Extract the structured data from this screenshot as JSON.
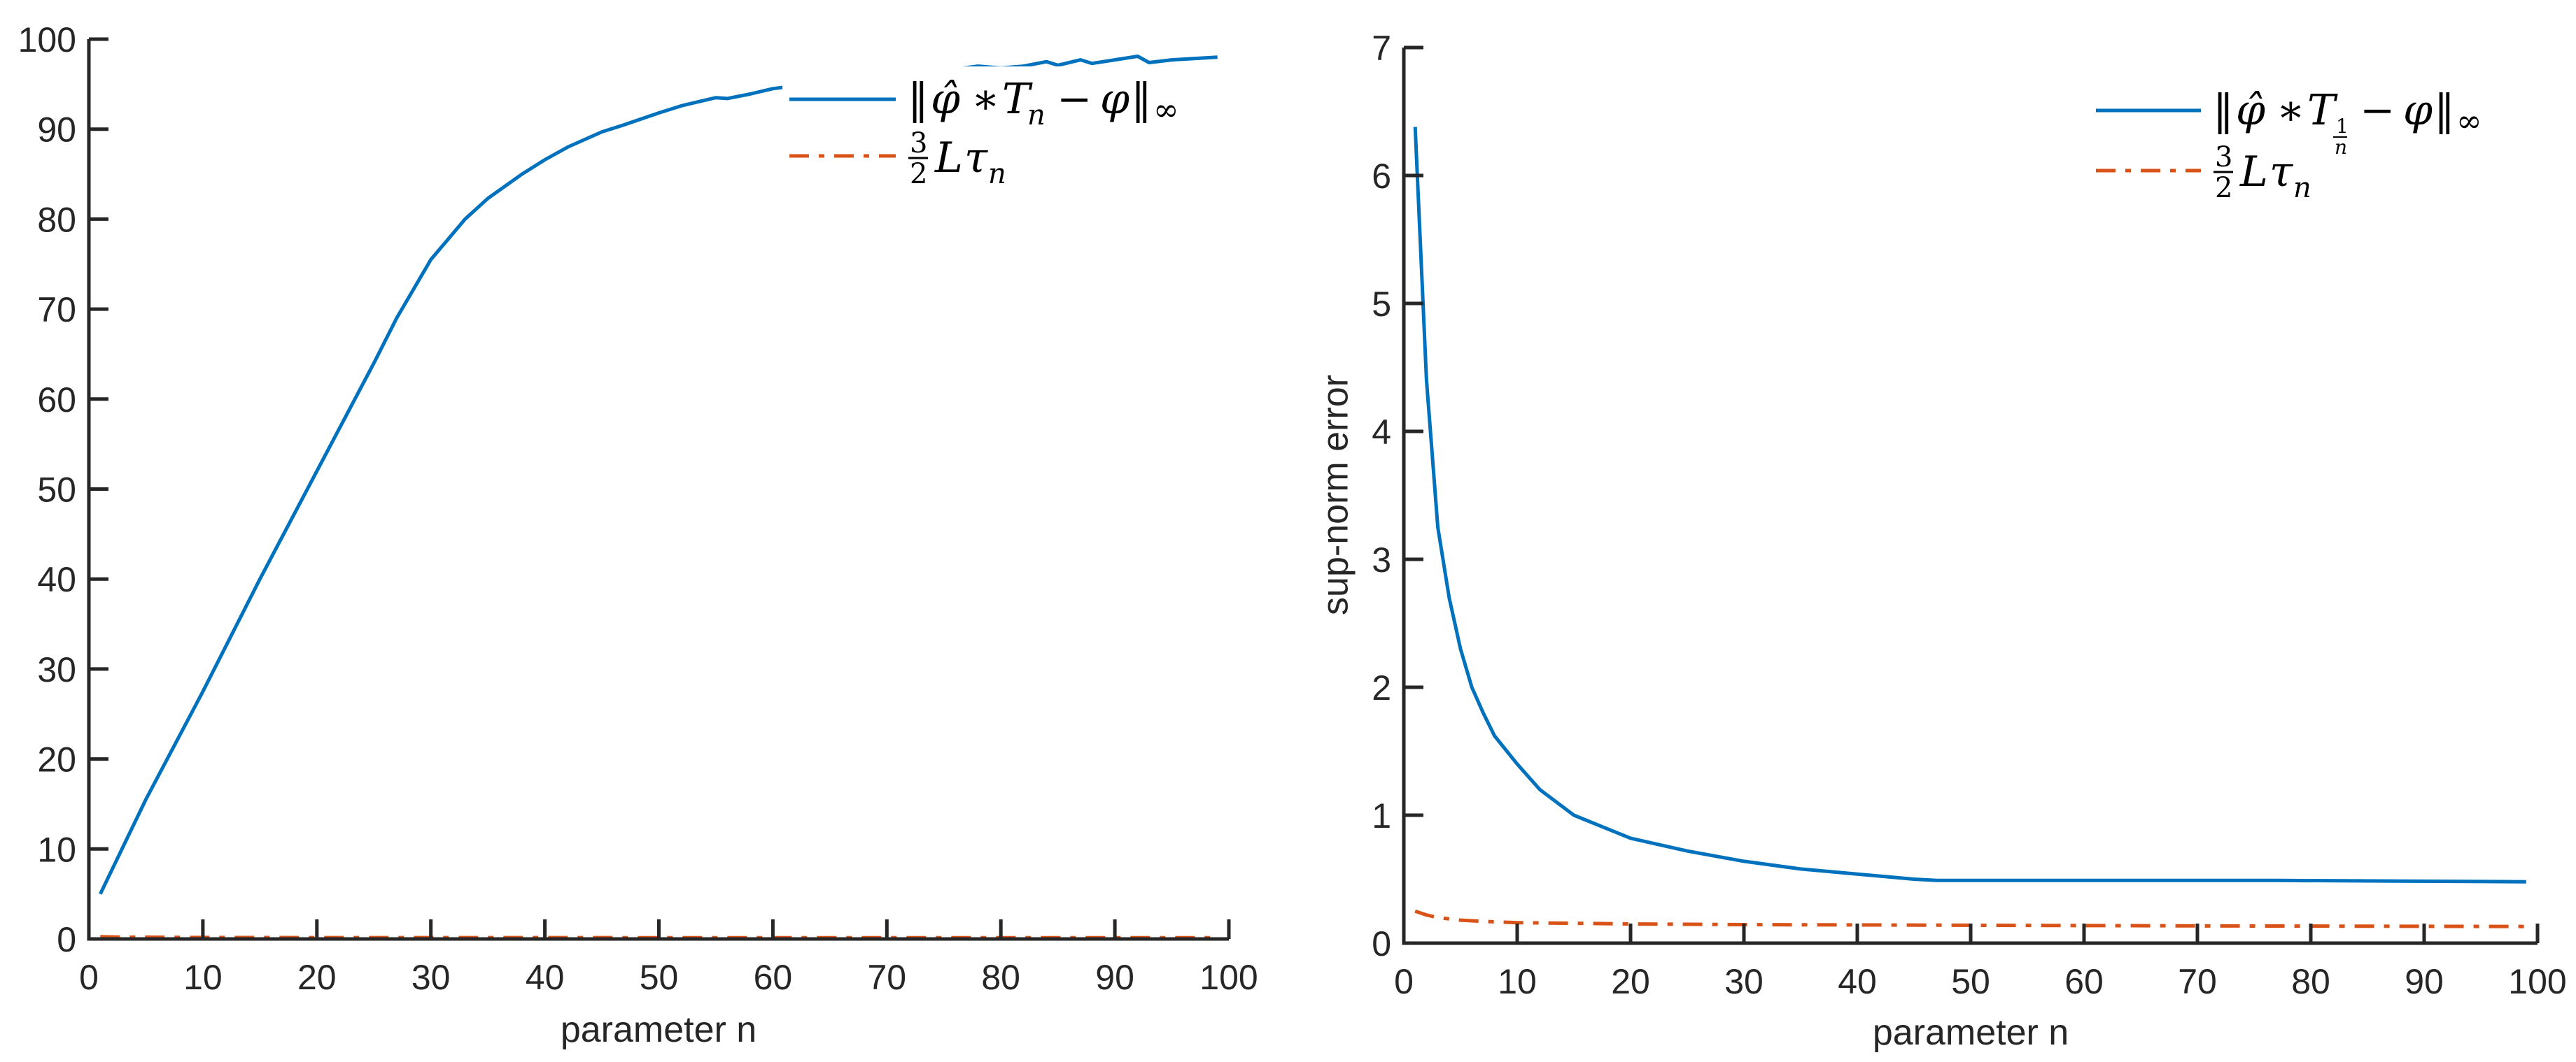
{
  "colors": {
    "series_blue": "#0072BD",
    "series_orange": "#D95319",
    "axis": "#262626"
  },
  "chart_data": [
    {
      "type": "line",
      "title": "",
      "xlabel": "parameter n",
      "ylabel": "",
      "xlim": [
        0,
        100
      ],
      "ylim": [
        0,
        100
      ],
      "xticks": [
        0,
        10,
        20,
        30,
        40,
        50,
        60,
        70,
        80,
        90,
        100
      ],
      "yticks": [
        0,
        10,
        20,
        30,
        40,
        50,
        60,
        70,
        80,
        90,
        100
      ],
      "grid": false,
      "legend_position": "northeast",
      "legend": [
        "||φ̂ * T_n − φ||_∞",
        "(3/2) L τ_n"
      ],
      "series": [
        {
          "name": "||φ̂ * T_n − φ||_∞",
          "style": "solid",
          "color": "#0072BD",
          "x": [
            1,
            5,
            10,
            15,
            20,
            25,
            27,
            30,
            33,
            35,
            38,
            40,
            42,
            45,
            47,
            50,
            52,
            55,
            56,
            58,
            60,
            65,
            70,
            75,
            78,
            80,
            82,
            84,
            85,
            87,
            88,
            90,
            92,
            93,
            95,
            99
          ],
          "values": [
            5,
            15.5,
            27.5,
            40,
            52,
            64,
            69,
            75.5,
            80,
            82.3,
            85,
            86.6,
            88,
            89.7,
            90.5,
            91.8,
            92.6,
            93.5,
            93.4,
            93.9,
            94.5,
            95.3,
            96,
            96.5,
            97,
            96.8,
            97,
            97.5,
            97.1,
            97.7,
            97.3,
            97.7,
            98.1,
            97.4,
            97.7,
            98
          ]
        },
        {
          "name": "(3/2) L τ_n",
          "style": "dash-dot",
          "color": "#D95319",
          "x": [
            1,
            3,
            10,
            20,
            50,
            99
          ],
          "values": [
            0.25,
            0.2,
            0.16,
            0.15,
            0.14,
            0.13
          ]
        }
      ]
    },
    {
      "type": "line",
      "title": "",
      "xlabel": "parameter n",
      "ylabel": "sup-norm error",
      "xlim": [
        0,
        100
      ],
      "ylim": [
        0,
        7
      ],
      "xticks": [
        0,
        10,
        20,
        30,
        40,
        50,
        60,
        70,
        80,
        90,
        100
      ],
      "yticks": [
        0,
        1,
        2,
        3,
        4,
        5,
        6,
        7
      ],
      "grid": false,
      "legend_position": "northeast",
      "legend": [
        "||φ̂ * T_{1/n} − φ||_∞",
        "(3/2) L τ_n"
      ],
      "series": [
        {
          "name": "||φ̂ * T_{1/n} − φ||_∞",
          "style": "solid",
          "color": "#0072BD",
          "x": [
            1,
            2,
            3,
            4,
            5,
            6,
            7,
            8,
            10,
            12,
            15,
            20,
            25,
            30,
            35,
            40,
            45,
            47,
            60,
            77,
            99
          ],
          "values": [
            6.38,
            4.4,
            3.25,
            2.7,
            2.3,
            2.0,
            1.8,
            1.62,
            1.4,
            1.2,
            1.0,
            0.82,
            0.72,
            0.64,
            0.58,
            0.54,
            0.5,
            0.49,
            0.49,
            0.49,
            0.48
          ]
        },
        {
          "name": "(3/2) L τ_n",
          "style": "dash-dot",
          "color": "#D95319",
          "x": [
            1,
            2,
            3,
            5,
            7,
            10,
            15,
            20,
            30,
            50,
            70,
            99
          ],
          "values": [
            0.25,
            0.22,
            0.2,
            0.18,
            0.17,
            0.16,
            0.155,
            0.15,
            0.145,
            0.14,
            0.135,
            0.13
          ]
        }
      ]
    }
  ],
  "left_chart": {
    "xlabel": "parameter n",
    "xtick_labels": [
      "0",
      "10",
      "20",
      "30",
      "40",
      "50",
      "60",
      "70",
      "80",
      "90",
      "100"
    ],
    "ytick_labels": [
      "0",
      "10",
      "20",
      "30",
      "40",
      "50",
      "60",
      "70",
      "80",
      "90",
      "100"
    ],
    "legend": {
      "blue_norm_open": "‖",
      "blue_phi_hat": "φ̂",
      "blue_star": "∗",
      "blue_T": "T",
      "blue_sub": "n",
      "blue_minus": "−",
      "blue_phi": "φ",
      "blue_norm_close": "‖",
      "blue_inf": "∞",
      "orange_num": "3",
      "orange_den": "2",
      "orange_L": "L",
      "orange_tau": "τ",
      "orange_sub": "n"
    }
  },
  "right_chart": {
    "xlabel": "parameter n",
    "ylabel": "sup-norm error",
    "xtick_labels": [
      "0",
      "10",
      "20",
      "30",
      "40",
      "50",
      "60",
      "70",
      "80",
      "90",
      "100"
    ],
    "ytick_labels": [
      "0",
      "1",
      "2",
      "3",
      "4",
      "5",
      "6",
      "7"
    ],
    "legend": {
      "blue_norm_open": "‖",
      "blue_phi_hat": "φ̂",
      "blue_star": "∗",
      "blue_T": "T",
      "blue_sub_num": "1",
      "blue_sub_den": "n",
      "blue_minus": "−",
      "blue_phi": "φ",
      "blue_norm_close": "‖",
      "blue_inf": "∞",
      "orange_num": "3",
      "orange_den": "2",
      "orange_L": "L",
      "orange_tau": "τ",
      "orange_sub": "n"
    }
  }
}
